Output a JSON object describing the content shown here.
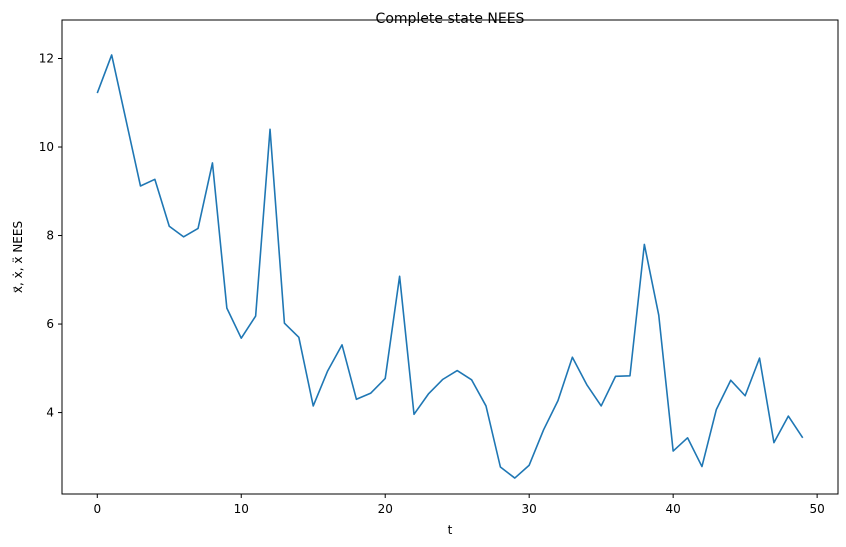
{
  "chart_data": {
    "type": "line",
    "title": "Complete state NEES",
    "xlabel": "t",
    "ylabel": "x⃗, ẋ, ẍ NEES",
    "xlim": [
      -2.45,
      51.45
    ],
    "ylim": [
      2.16,
      12.87
    ],
    "xticks": [
      0,
      10,
      20,
      30,
      40,
      50
    ],
    "yticks": [
      4,
      6,
      8,
      10,
      12
    ],
    "grid": false,
    "series": [
      {
        "color": "#1f77b4",
        "x": [
          0,
          1,
          2,
          3,
          4,
          5,
          6,
          7,
          8,
          9,
          10,
          11,
          12,
          13,
          14,
          15,
          16,
          17,
          18,
          19,
          20,
          21,
          22,
          23,
          24,
          25,
          26,
          27,
          28,
          29,
          30,
          31,
          32,
          33,
          34,
          35,
          36,
          37,
          38,
          39,
          40,
          41,
          42,
          43,
          44,
          45,
          46,
          47,
          48,
          49
        ],
        "y": [
          11.22,
          12.08,
          10.6,
          9.12,
          9.27,
          8.21,
          7.97,
          8.16,
          9.64,
          6.36,
          5.68,
          6.18,
          10.4,
          6.02,
          5.7,
          4.15,
          4.94,
          5.53,
          4.3,
          4.44,
          4.77,
          7.08,
          3.96,
          4.42,
          4.75,
          4.95,
          4.74,
          4.15,
          2.77,
          2.52,
          2.81,
          3.61,
          4.27,
          5.25,
          4.63,
          4.15,
          4.82,
          4.83,
          7.8,
          6.2,
          3.13,
          3.43,
          2.78,
          4.07,
          4.73,
          4.38,
          5.23,
          3.32,
          3.92,
          3.43
        ]
      }
    ]
  }
}
